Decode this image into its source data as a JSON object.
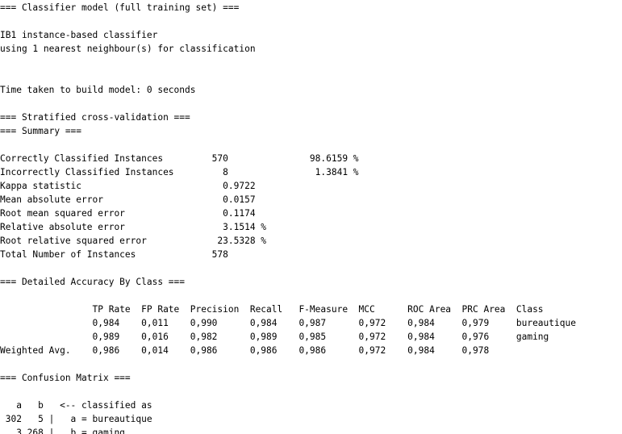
{
  "output_lines": [
    "=== Classifier model (full training set) ===",
    "",
    "IB1 instance-based classifier",
    "using 1 nearest neighbour(s) for classification",
    "",
    "",
    "Time taken to build model: 0 seconds",
    "",
    "=== Stratified cross-validation ===",
    "=== Summary ===",
    "",
    "Correctly Classified Instances         570               98.6159 %",
    "Incorrectly Classified Instances         8                1.3841 %",
    "Kappa statistic                          0.9722",
    "Mean absolute error                      0.0157",
    "Root mean squared error                  0.1174",
    "Relative absolute error                  3.1514 %",
    "Root relative squared error             23.5328 %",
    "Total Number of Instances              578",
    "",
    "=== Detailed Accuracy By Class ===",
    "",
    "                 TP Rate  FP Rate  Precision  Recall   F-Measure  MCC      ROC Area  PRC Area  Class",
    "                 0,984    0,011    0,990      0,984    0,987      0,972    0,984     0,979     bureautique",
    "                 0,989    0,016    0,982      0,989    0,985      0,972    0,984     0,976     gaming",
    "Weighted Avg.    0,986    0,014    0,986      0,986    0,986      0,972    0,984     0,978",
    "",
    "=== Confusion Matrix ===",
    "",
    "   a   b   <-- classified as",
    " 302   5 |   a = bureautique",
    "   3 268 |   b = gaming"
  ]
}
